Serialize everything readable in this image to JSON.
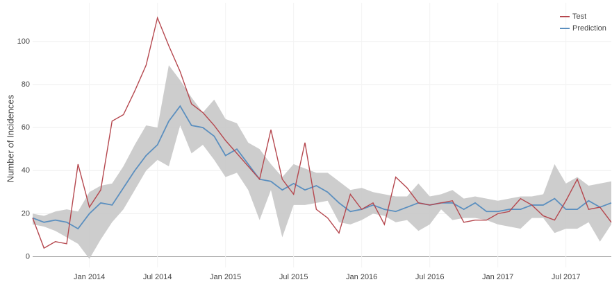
{
  "chart_data": {
    "type": "line",
    "y_label": "Number of Incidences",
    "x": [
      "2013-08",
      "2013-09",
      "2013-10",
      "2013-11",
      "2013-12",
      "2014-01",
      "2014-02",
      "2014-03",
      "2014-04",
      "2014-05",
      "2014-06",
      "2014-07",
      "2014-08",
      "2014-09",
      "2014-10",
      "2014-11",
      "2014-12",
      "2015-01",
      "2015-02",
      "2015-03",
      "2015-04",
      "2015-05",
      "2015-06",
      "2015-07",
      "2015-08",
      "2015-09",
      "2015-10",
      "2015-11",
      "2015-12",
      "2016-01",
      "2016-02",
      "2016-03",
      "2016-04",
      "2016-05",
      "2016-06",
      "2016-07",
      "2016-08",
      "2016-09",
      "2016-10",
      "2016-11",
      "2016-12",
      "2017-01",
      "2017-02",
      "2017-03",
      "2017-04",
      "2017-05",
      "2017-06",
      "2017-07",
      "2017-08",
      "2017-09",
      "2017-10",
      "2017-11"
    ],
    "series": [
      {
        "name": "Test",
        "color": "#b5474e",
        "values": [
          18,
          4,
          7,
          6,
          43,
          23,
          31,
          63,
          66,
          77,
          89,
          111,
          98,
          86,
          71,
          67,
          61,
          54,
          48,
          42,
          36,
          59,
          36,
          29,
          53,
          22,
          18,
          11,
          29,
          22,
          25,
          15,
          37,
          32,
          25,
          24,
          25,
          26,
          16,
          17,
          17,
          20,
          21,
          27,
          24,
          19,
          17,
          26,
          36,
          22,
          23,
          16
        ]
      },
      {
        "name": "Prediction",
        "color": "#5b8fbf",
        "values": [
          18,
          16,
          17,
          16,
          13,
          20,
          25,
          24,
          32,
          40,
          47,
          52,
          63,
          70,
          61,
          60,
          56,
          47,
          50,
          43,
          36,
          35,
          31,
          34,
          31,
          33,
          30,
          25,
          21,
          22,
          24,
          22,
          21,
          23,
          25,
          24,
          25,
          25,
          22,
          25,
          21,
          21,
          22,
          22,
          24,
          24,
          27,
          22,
          22,
          26,
          23,
          25
        ]
      }
    ],
    "band": {
      "color": "#c8c8c8",
      "upper": [
        20,
        19,
        21,
        22,
        21,
        30,
        33,
        34,
        42,
        52,
        61,
        60,
        89,
        82,
        74,
        67,
        73,
        64,
        62,
        53,
        50,
        43,
        37,
        43,
        41,
        39,
        39,
        35,
        31,
        32,
        30,
        29,
        28,
        28,
        34,
        28,
        29,
        31,
        27,
        28,
        27,
        26,
        27,
        28,
        28,
        29,
        43,
        34,
        37,
        33,
        34,
        35
      ],
      "lower": [
        15,
        14,
        12,
        9,
        6,
        -1,
        8,
        16,
        22,
        31,
        40,
        45,
        42,
        61,
        48,
        52,
        45,
        37,
        39,
        31,
        17,
        31,
        9,
        24,
        24,
        25,
        26,
        16,
        15,
        17,
        20,
        19,
        16,
        17,
        12,
        15,
        22,
        17,
        18,
        18,
        17,
        15,
        14,
        13,
        18,
        18,
        11,
        13,
        13,
        16,
        7,
        15
      ]
    },
    "xticks": [
      {
        "value": "2014-01",
        "label": "Jan 2014"
      },
      {
        "value": "2014-07",
        "label": "Jul 2014"
      },
      {
        "value": "2015-01",
        "label": "Jan 2015"
      },
      {
        "value": "2015-07",
        "label": "Jul 2015"
      },
      {
        "value": "2016-01",
        "label": "Jan 2016"
      },
      {
        "value": "2016-07",
        "label": "Jul 2016"
      },
      {
        "value": "2017-01",
        "label": "Jan 2017"
      },
      {
        "value": "2017-07",
        "label": "Jul 2017"
      }
    ],
    "ylim": [
      -5,
      118
    ],
    "yticks": [
      0,
      20,
      40,
      60,
      80,
      100
    ],
    "grid": true,
    "legend": "top-right"
  }
}
